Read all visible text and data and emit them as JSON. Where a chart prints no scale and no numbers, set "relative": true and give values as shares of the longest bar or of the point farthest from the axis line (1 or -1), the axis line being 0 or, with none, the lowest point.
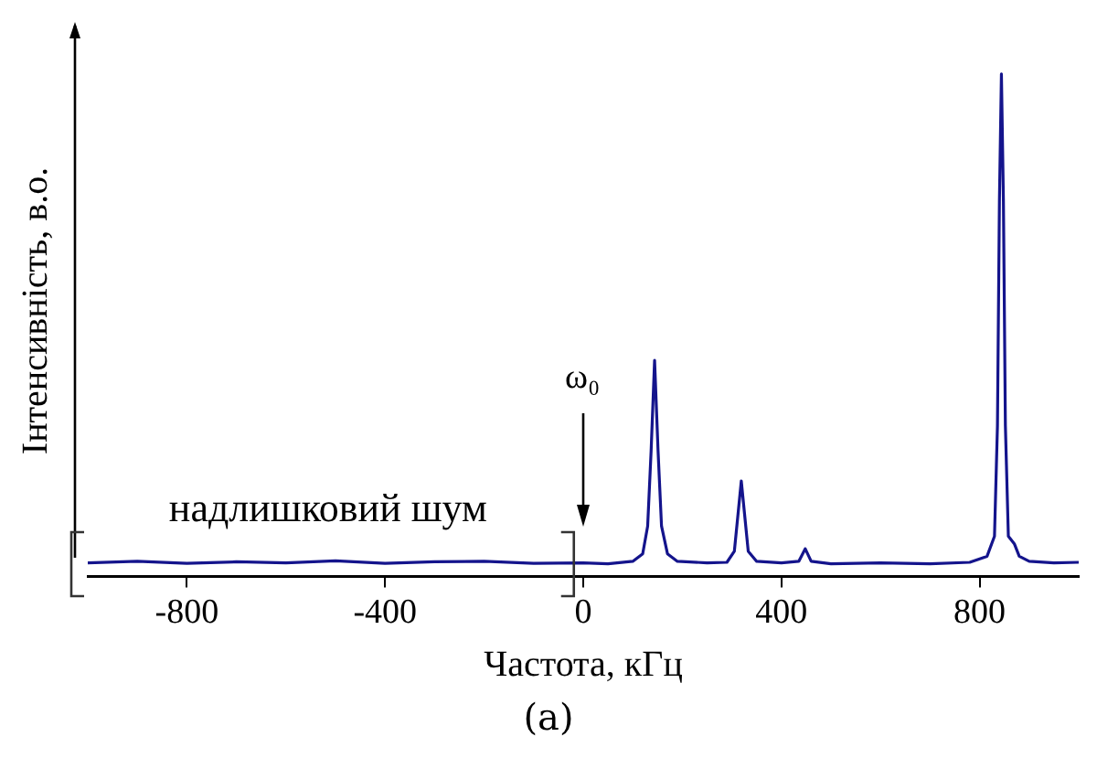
{
  "chart_data": {
    "type": "line",
    "relative": true,
    "xlabel": "Частота, кГц",
    "ylabel": "Інтенсивність, в.о.",
    "xlim": [
      -1000,
      1000
    ],
    "xticks": [
      -800,
      -400,
      0,
      400,
      800
    ],
    "grid": false,
    "legend": false,
    "marker": "none",
    "line_style": "solid",
    "annotations": [
      "ω₀",
      "надлишковий шум",
      "(a)"
    ],
    "series": [
      {
        "color": "#14148c",
        "x": [
          -1000,
          -900,
          -800,
          -700,
          -600,
          -500,
          -400,
          -300,
          -200,
          -100,
          0,
          50,
          100,
          120,
          130,
          137,
          144,
          151,
          158,
          170,
          190,
          250,
          290,
          305,
          313,
          319,
          325,
          333,
          350,
          400,
          435,
          448,
          460,
          500,
          600,
          700,
          780,
          815,
          830,
          836,
          840,
          844,
          848,
          852,
          858,
          870,
          880,
          900,
          950,
          1000
        ],
        "values": [
          0.027,
          0.03,
          0.026,
          0.029,
          0.027,
          0.031,
          0.026,
          0.029,
          0.03,
          0.026,
          0.027,
          0.025,
          0.03,
          0.045,
          0.1,
          0.25,
          0.43,
          0.25,
          0.1,
          0.045,
          0.03,
          0.027,
          0.028,
          0.05,
          0.13,
          0.19,
          0.13,
          0.05,
          0.03,
          0.027,
          0.03,
          0.055,
          0.03,
          0.025,
          0.027,
          0.025,
          0.028,
          0.04,
          0.08,
          0.3,
          0.75,
          1,
          0.75,
          0.3,
          0.08,
          0.065,
          0.04,
          0.03,
          0.027,
          0.028
        ]
      }
    ]
  }
}
